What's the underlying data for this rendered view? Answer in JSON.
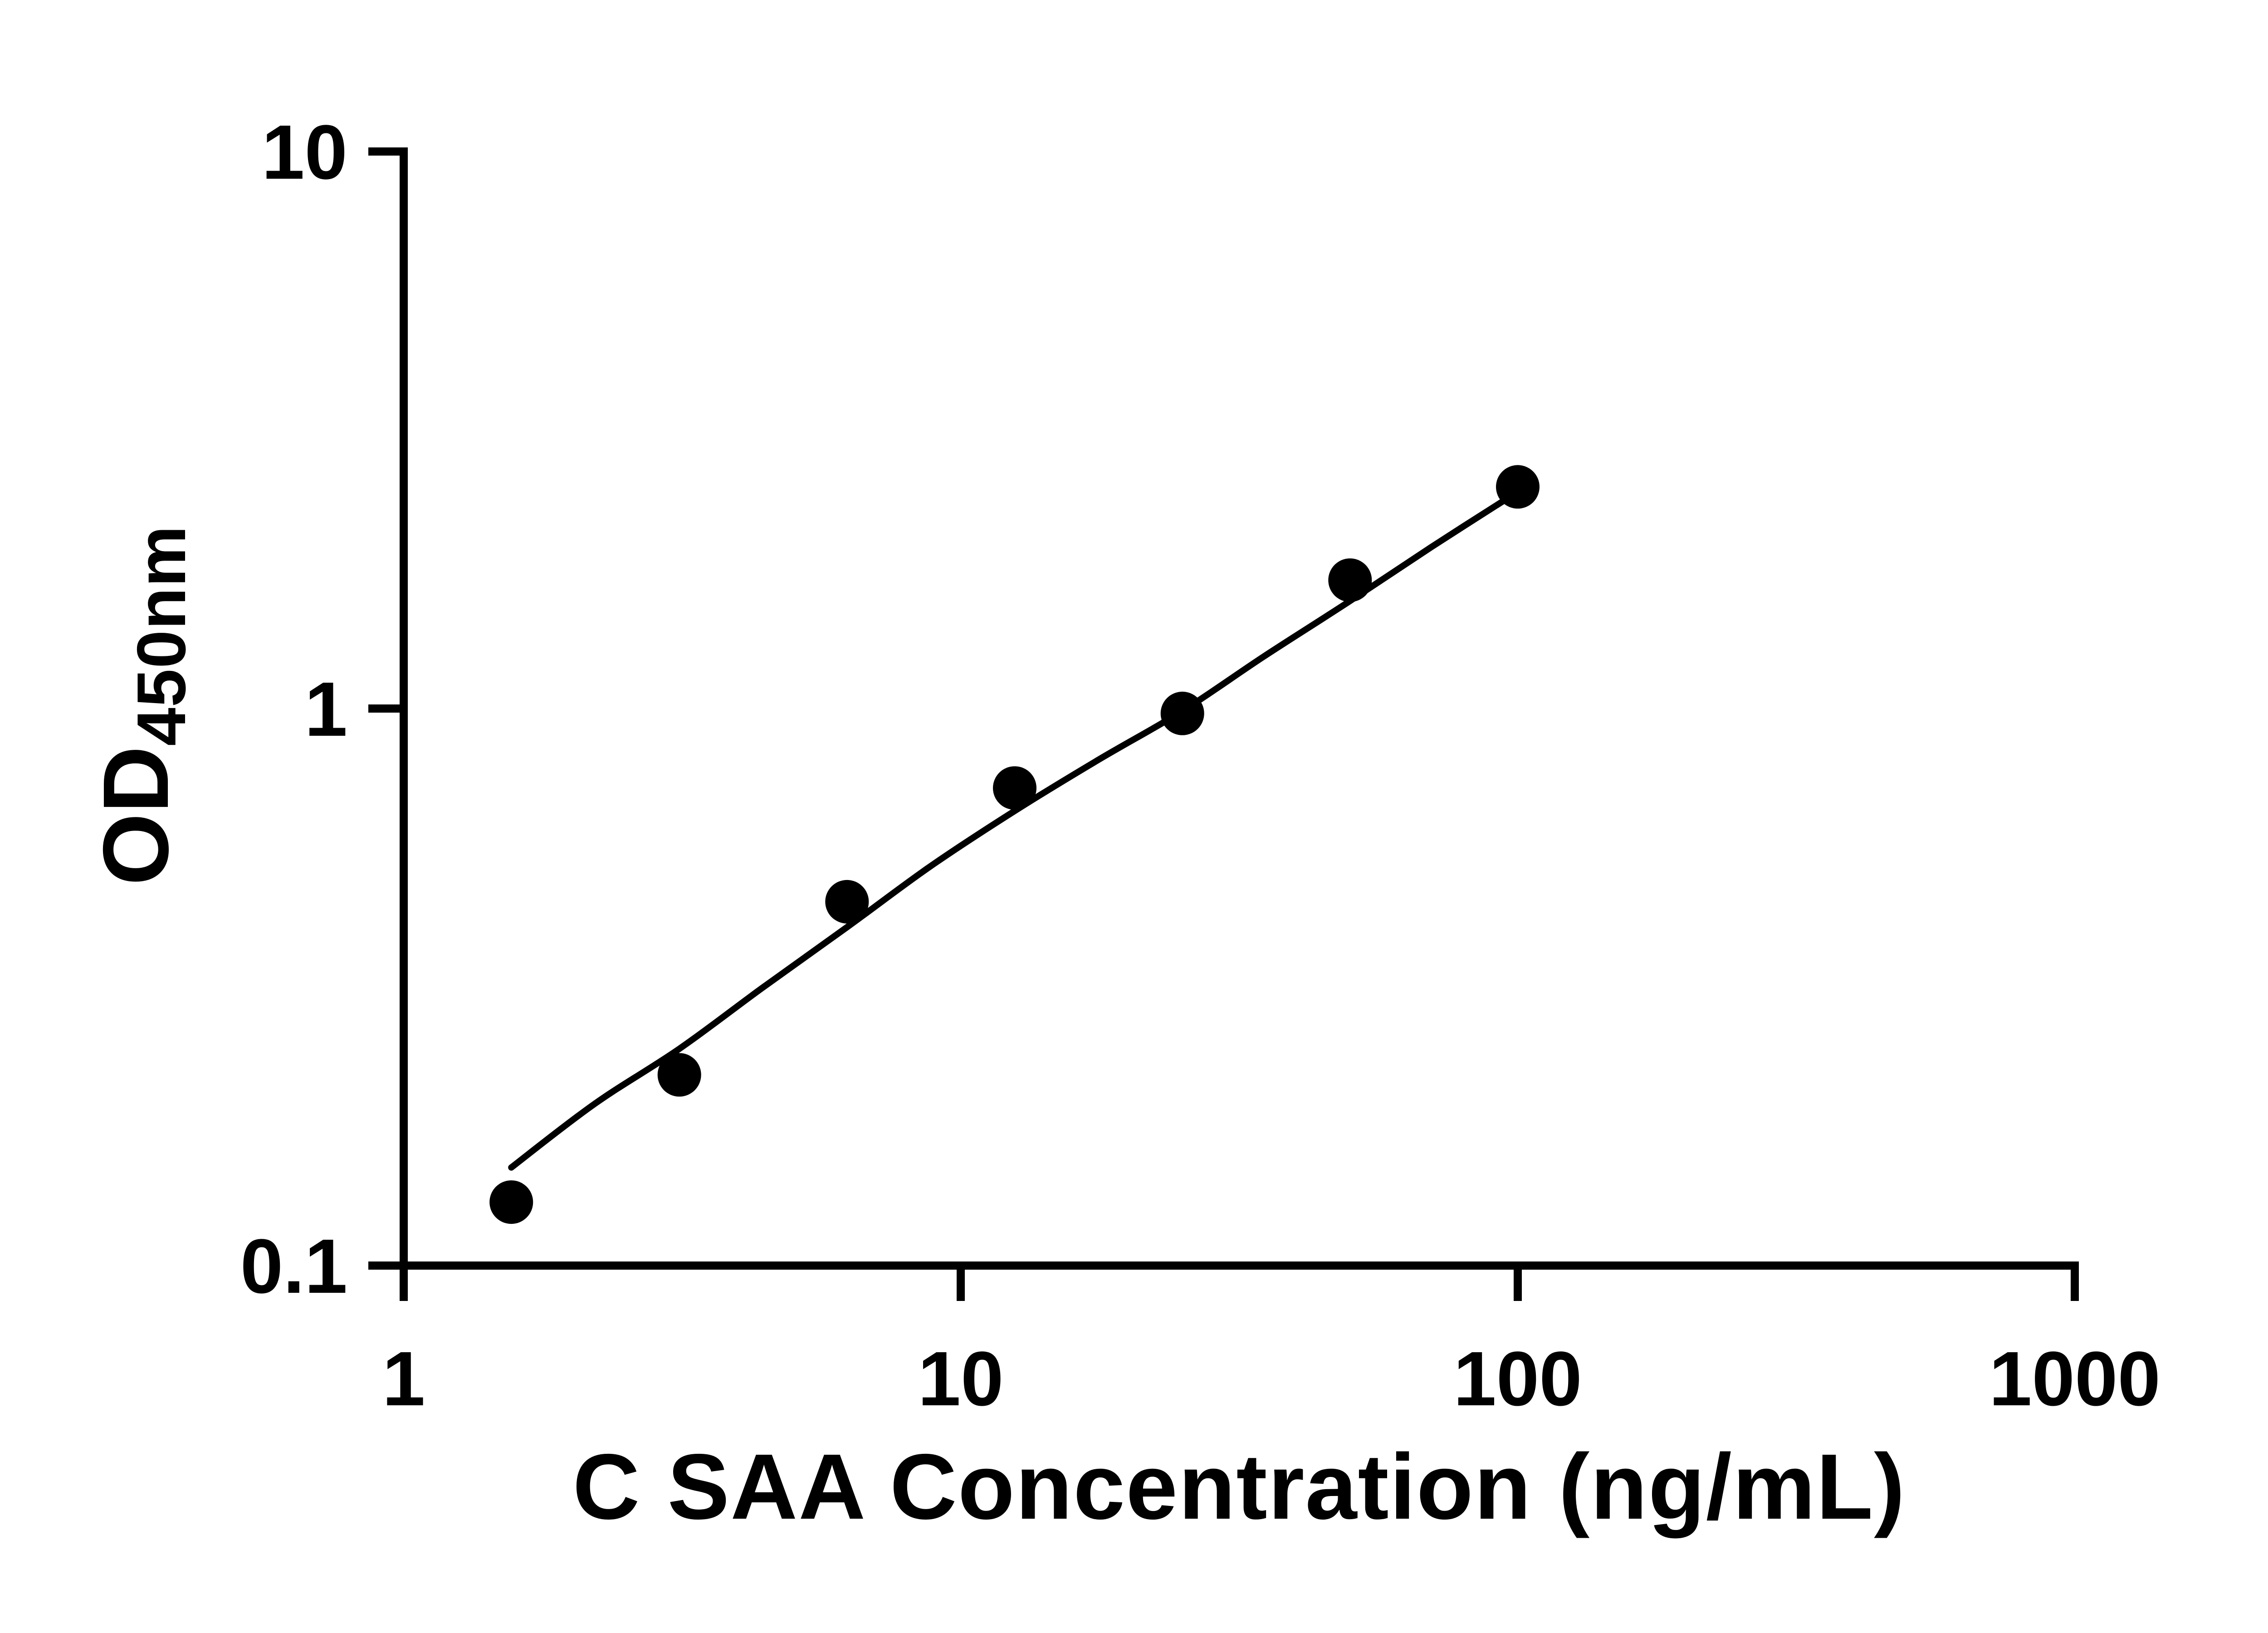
{
  "chart_data": {
    "type": "scatter",
    "title": "",
    "xlabel": "C SAA Concentration (ng/mL)",
    "ylabel_main": "OD",
    "ylabel_sub": "450nm",
    "x_scale": "log",
    "y_scale": "log",
    "xlim": [
      1,
      1000
    ],
    "ylim": [
      0.1,
      10
    ],
    "x_ticks": [
      1,
      10,
      100,
      1000
    ],
    "y_ticks": [
      0.1,
      1,
      10
    ],
    "grid": false,
    "legend": "none",
    "marker_color": "#000000",
    "line_color": "#000000",
    "x": [
      1.56,
      3.125,
      6.25,
      12.5,
      25,
      50,
      100
    ],
    "y": [
      0.13,
      0.22,
      0.45,
      0.72,
      0.98,
      1.7,
      2.5
    ],
    "points": [
      [
        1.56,
        0.13
      ],
      [
        3.125,
        0.22
      ],
      [
        6.25,
        0.45
      ],
      [
        12.5,
        0.72
      ],
      [
        25,
        0.98
      ],
      [
        50,
        1.7
      ],
      [
        100,
        2.5
      ]
    ],
    "fit_curve": [
      [
        1.56,
        0.15
      ],
      [
        2.2,
        0.195
      ],
      [
        3.125,
        0.245
      ],
      [
        4.4,
        0.315
      ],
      [
        6.25,
        0.405
      ],
      [
        8.8,
        0.52
      ],
      [
        12.5,
        0.655
      ],
      [
        17.7,
        0.81
      ],
      [
        25,
        0.99
      ],
      [
        35,
        1.24
      ],
      [
        50,
        1.56
      ],
      [
        70,
        1.95
      ],
      [
        100,
        2.45
      ]
    ]
  }
}
